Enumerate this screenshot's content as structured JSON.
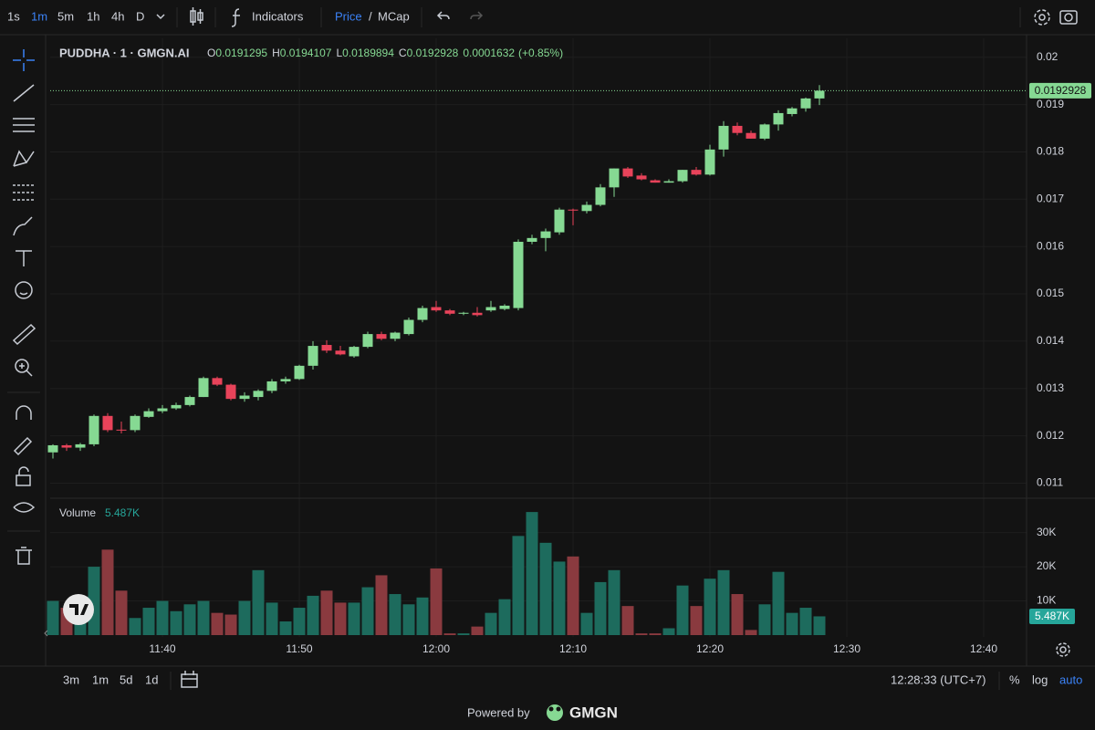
{
  "toolbar": {
    "intervals": [
      "1s",
      "1m",
      "5m",
      "1h",
      "4h",
      "D"
    ],
    "indicators": "Indicators",
    "price": "Price",
    "separator": "/",
    "mcap": "MCap"
  },
  "chart_data": {
    "type": "candlestick",
    "title": "PUDDHA · 1 · GMGN.AI",
    "x": [
      "11:32",
      "11:33",
      "11:34",
      "11:35",
      "11:36",
      "11:37",
      "11:38",
      "11:39",
      "11:40",
      "11:41",
      "11:42",
      "11:43",
      "11:44",
      "11:45",
      "11:46",
      "11:47",
      "11:48",
      "11:49",
      "11:50",
      "11:51",
      "11:52",
      "11:53",
      "11:54",
      "11:55",
      "11:56",
      "11:57",
      "11:58",
      "11:59",
      "12:00",
      "12:01",
      "12:02",
      "12:03",
      "12:04",
      "12:05",
      "12:06",
      "12:07",
      "12:08",
      "12:09",
      "12:10",
      "12:11",
      "12:12",
      "12:13",
      "12:14",
      "12:15",
      "12:16",
      "12:17",
      "12:18",
      "12:19",
      "12:20",
      "12:21",
      "12:22",
      "12:23",
      "12:24",
      "12:25",
      "12:26",
      "12:27",
      "12:28"
    ],
    "open": [
      0.01165,
      0.0118,
      0.01175,
      0.01182,
      0.01242,
      0.01213,
      0.01212,
      0.0124,
      0.01252,
      0.01258,
      0.01265,
      0.01282,
      0.01322,
      0.01308,
      0.01278,
      0.01282,
      0.01295,
      0.01315,
      0.0132,
      0.01348,
      0.01392,
      0.0138,
      0.01368,
      0.01388,
      0.01415,
      0.01405,
      0.01415,
      0.01445,
      0.01472,
      0.01465,
      0.01458,
      0.0146,
      0.01465,
      0.01468,
      0.0147,
      0.0161,
      0.01618,
      0.0163,
      0.01678,
      0.01675,
      0.01688,
      0.01725,
      0.01765,
      0.0175,
      0.0174,
      0.01735,
      0.01738,
      0.01762,
      0.01752,
      0.01805,
      0.01855,
      0.0184,
      0.01828,
      0.01858,
      0.0188,
      0.01892,
      0.0191295
    ],
    "high": [
      0.01182,
      0.01183,
      0.01185,
      0.01245,
      0.01248,
      0.0123,
      0.01245,
      0.01258,
      0.01265,
      0.0127,
      0.01285,
      0.01325,
      0.01325,
      0.0131,
      0.01292,
      0.01298,
      0.0132,
      0.01325,
      0.0135,
      0.014,
      0.01402,
      0.0139,
      0.0139,
      0.0142,
      0.0142,
      0.0142,
      0.0145,
      0.01475,
      0.01485,
      0.01468,
      0.01462,
      0.01472,
      0.01485,
      0.01478,
      0.01615,
      0.01625,
      0.01638,
      0.01682,
      0.0168,
      0.01695,
      0.01732,
      0.01765,
      0.01768,
      0.01755,
      0.01742,
      0.01742,
      0.01762,
      0.01768,
      0.01815,
      0.01865,
      0.01862,
      0.01845,
      0.0186,
      0.01888,
      0.01895,
      0.01915,
      0.0194107
    ],
    "low": [
      0.01152,
      0.01168,
      0.01168,
      0.01178,
      0.01208,
      0.01205,
      0.01208,
      0.01238,
      0.01248,
      0.01255,
      0.01262,
      0.01282,
      0.01305,
      0.01275,
      0.01272,
      0.01275,
      0.0129,
      0.0131,
      0.01318,
      0.0134,
      0.01375,
      0.0137,
      0.01365,
      0.01385,
      0.01402,
      0.014,
      0.01412,
      0.0144,
      0.01462,
      0.01455,
      0.01455,
      0.01452,
      0.01462,
      0.01465,
      0.01465,
      0.01605,
      0.0159,
      0.01625,
      0.01645,
      0.0167,
      0.01685,
      0.01705,
      0.01745,
      0.0174,
      0.01735,
      0.01735,
      0.01735,
      0.0175,
      0.0175,
      0.0179,
      0.01835,
      0.01828,
      0.01825,
      0.01845,
      0.01875,
      0.01885,
      0.0189894
    ],
    "close": [
      0.0118,
      0.01175,
      0.01182,
      0.01242,
      0.01212,
      0.01212,
      0.01242,
      0.01252,
      0.01258,
      0.01265,
      0.01282,
      0.01322,
      0.01308,
      0.01278,
      0.01285,
      0.01295,
      0.01315,
      0.0132,
      0.01348,
      0.0139,
      0.0138,
      0.01372,
      0.01388,
      0.01415,
      0.01405,
      0.01418,
      0.01445,
      0.0147,
      0.01465,
      0.01458,
      0.0146,
      0.01455,
      0.01472,
      0.01475,
      0.0161,
      0.01618,
      0.01632,
      0.01678,
      0.01676,
      0.01688,
      0.01725,
      0.01765,
      0.01748,
      0.01742,
      0.01735,
      0.01738,
      0.01762,
      0.01752,
      0.01805,
      0.01855,
      0.0184,
      0.01828,
      0.01858,
      0.01882,
      0.01892,
      0.0191295,
      0.0192928
    ],
    "up_color": "#86d993",
    "down_color": "#e8435a",
    "legend_letters": {
      "open": "O",
      "high": "H",
      "low": "L",
      "close": "C"
    },
    "change": 0.0001632,
    "change_percent_label": "(+0.85%)",
    "xlim": [
      "11:32",
      "12:43"
    ],
    "xticks": [
      "11:40",
      "11:50",
      "12:00",
      "12:10",
      "12:20",
      "12:30",
      "12:40"
    ],
    "ylim": [
      0.0107,
      0.0204
    ],
    "yticks": [
      0.011,
      0.012,
      0.013,
      0.014,
      0.015,
      0.016,
      0.017,
      0.018,
      0.019,
      0.02
    ],
    "grid": true,
    "volume": {
      "name": "Volume",
      "up_color": "#1d6b5d",
      "down_color": "#8a3a3f",
      "values": [
        10000,
        8000,
        10000,
        20000,
        25000,
        13000,
        5000,
        8000,
        10000,
        7000,
        9000,
        10000,
        6500,
        6000,
        10000,
        19000,
        9500,
        4000,
        8000,
        11500,
        13000,
        9500,
        9500,
        14000,
        17500,
        12000,
        9000,
        11000,
        19500,
        500,
        500,
        2500,
        6500,
        10500,
        29000,
        36000,
        27000,
        21500,
        23000,
        6500,
        15500,
        19000,
        8500,
        500,
        500,
        2000,
        14500,
        8500,
        16500,
        19000,
        12000,
        1500,
        9000,
        18500,
        6500,
        8000,
        5487
      ],
      "value_labels": [
        null,
        null,
        null,
        null,
        null,
        null,
        null,
        null,
        null,
        null,
        null,
        null,
        null,
        null,
        null,
        null,
        null,
        null,
        null,
        null,
        null,
        null,
        null,
        null,
        null,
        null,
        null,
        null,
        null,
        null,
        null,
        null,
        null,
        null,
        null,
        null,
        null,
        null,
        null,
        null,
        null,
        null,
        null,
        null,
        null,
        null,
        null,
        null,
        null,
        null,
        null,
        null,
        null,
        null,
        null,
        null,
        "5.487K"
      ],
      "ylim": [
        0,
        39500
      ],
      "yticks": [
        {
          "value": 10000,
          "label": "10K"
        },
        {
          "value": 20000,
          "label": "20K"
        },
        {
          "value": 30000,
          "label": "30K"
        }
      ]
    }
  },
  "footer": {
    "ranges": [
      "3m",
      "1m",
      "5d",
      "1d"
    ],
    "clock": "12:28:33 (UTC+7)",
    "percent": "%",
    "log": "log",
    "auto": "auto",
    "powered_by": "Powered by",
    "brand": "GMGN"
  }
}
